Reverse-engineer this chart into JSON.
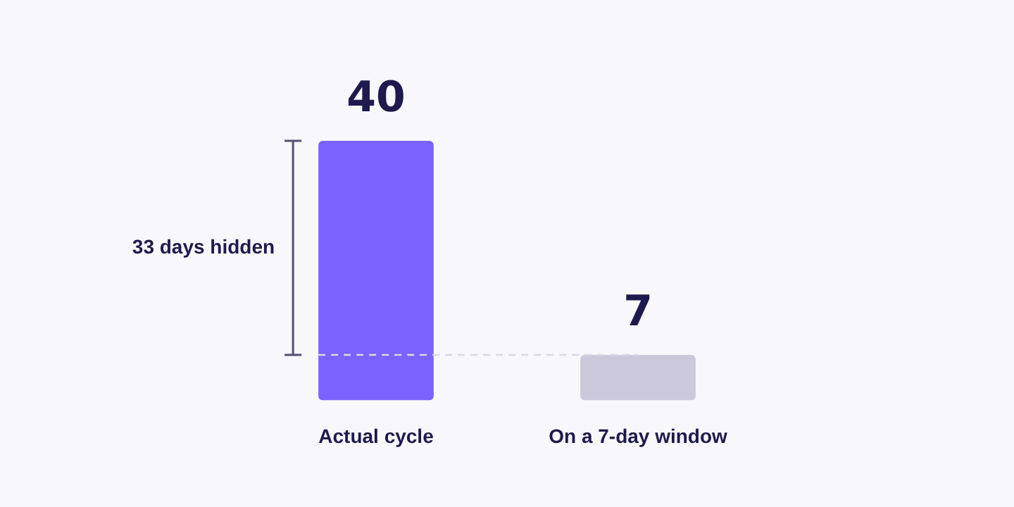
{
  "chart_data": {
    "type": "bar",
    "categories": [
      "Actual cycle",
      "On a 7-day window"
    ],
    "values": [
      40,
      7
    ],
    "colors": [
      "#7b61ff",
      "#cbc8db"
    ],
    "data_labels": true,
    "ref_lines": [
      {
        "axis": "y",
        "value": 7,
        "color": "#d9d9e6",
        "line_style": "dashed"
      }
    ],
    "annotations": [
      "33 days hidden"
    ]
  }
}
